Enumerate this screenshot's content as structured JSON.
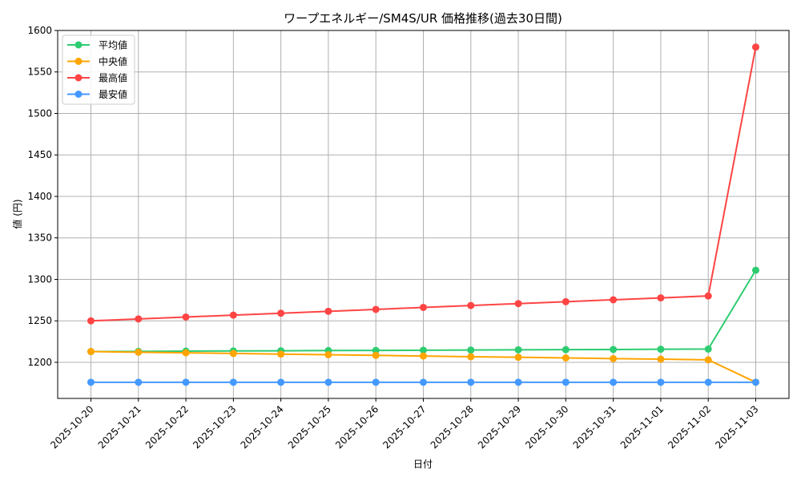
{
  "chart_data": {
    "type": "line",
    "title": "ワープエネルギー/SM4S/UR 価格推移(過去30日間)",
    "xlabel": "日付",
    "ylabel": "値 (円)",
    "categories": [
      "2025-10-20",
      "2025-10-21",
      "2025-10-22",
      "2025-10-23",
      "2025-10-24",
      "2025-10-25",
      "2025-10-26",
      "2025-10-27",
      "2025-10-28",
      "2025-10-29",
      "2025-10-30",
      "2025-10-31",
      "2025-11-01",
      "2025-11-02",
      "2025-11-03"
    ],
    "ylim": [
      1156.5,
      1600
    ],
    "yticks": [
      1200,
      1250,
      1300,
      1350,
      1400,
      1450,
      1500,
      1550,
      1600
    ],
    "grid": true,
    "legend_position": "top-left",
    "series": [
      {
        "name": "平均値",
        "color": "#2ecc71",
        "values": [
          1213.0,
          1213.2,
          1213.5,
          1213.7,
          1213.9,
          1214.2,
          1214.4,
          1214.6,
          1214.8,
          1215.1,
          1215.3,
          1215.5,
          1215.8,
          1216.0,
          1311
        ]
      },
      {
        "name": "中央値",
        "color": "#ffa500",
        "values": [
          1213.0,
          1212.2,
          1211.5,
          1210.7,
          1209.9,
          1209.2,
          1208.4,
          1207.6,
          1206.8,
          1206.1,
          1205.3,
          1204.5,
          1203.8,
          1203.0,
          1176
        ]
      },
      {
        "name": "最高値",
        "color": "#ff4444",
        "values": [
          1250.0,
          1252.3,
          1254.6,
          1256.9,
          1259.2,
          1261.5,
          1263.8,
          1266.2,
          1268.5,
          1270.8,
          1273.1,
          1275.4,
          1277.7,
          1280.0,
          1580
        ]
      },
      {
        "name": "最安値",
        "color": "#4499ff",
        "values": [
          1176,
          1176,
          1176,
          1176,
          1176,
          1176,
          1176,
          1176,
          1176,
          1176,
          1176,
          1176,
          1176,
          1176,
          1176
        ]
      }
    ]
  }
}
